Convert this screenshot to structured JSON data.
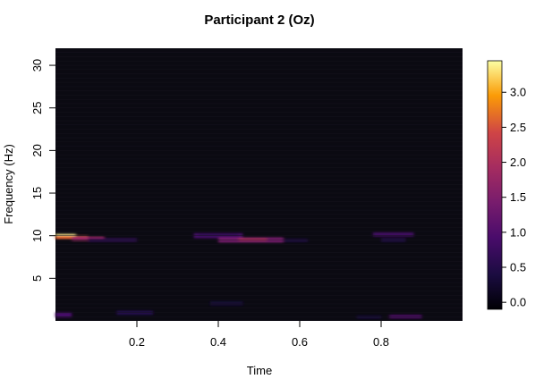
{
  "chart_data": {
    "type": "heatmap",
    "title": "Participant 2 (Oz)",
    "xlabel": "Time",
    "ylabel": "Frequency (Hz)",
    "xlim": [
      0,
      1.0
    ],
    "ylim": [
      0,
      32
    ],
    "x_ticks": [
      0.2,
      0.4,
      0.6,
      0.8
    ],
    "x_tick_labels": [
      "0.2",
      "0.4",
      "0.6",
      "0.8"
    ],
    "y_ticks": [
      5,
      10,
      15,
      20,
      25,
      30
    ],
    "y_tick_labels": [
      "5",
      "10",
      "15",
      "20",
      "25",
      "30"
    ],
    "colorbar": {
      "min": -0.1,
      "max": 3.45,
      "ticks": [
        0.0,
        0.5,
        1.0,
        1.5,
        2.0,
        2.5,
        3.0
      ],
      "tick_labels": [
        "0.0",
        "0.5",
        "1.0",
        "1.5",
        "2.0",
        "2.5",
        "3.0"
      ],
      "colormap": "inferno"
    },
    "background_color": "#0b0a12",
    "hotspots": [
      {
        "t": [
          0.0,
          0.05
        ],
        "f": [
          9.8,
          10.2
        ],
        "value": 3.4
      },
      {
        "t": [
          0.0,
          0.08
        ],
        "f": [
          9.6,
          10.0
        ],
        "value": 2.6
      },
      {
        "t": [
          0.04,
          0.12
        ],
        "f": [
          9.4,
          9.9
        ],
        "value": 1.8
      },
      {
        "t": [
          0.08,
          0.2
        ],
        "f": [
          9.3,
          9.7
        ],
        "value": 0.6
      },
      {
        "t": [
          0.0,
          0.04
        ],
        "f": [
          0.4,
          1.0
        ],
        "value": 0.9
      },
      {
        "t": [
          0.15,
          0.24
        ],
        "f": [
          0.7,
          1.2
        ],
        "value": 0.5
      },
      {
        "t": [
          0.34,
          0.46
        ],
        "f": [
          9.7,
          10.3
        ],
        "value": 0.9
      },
      {
        "t": [
          0.4,
          0.56
        ],
        "f": [
          9.2,
          9.8
        ],
        "value": 1.4
      },
      {
        "t": [
          0.45,
          0.52
        ],
        "f": [
          9.4,
          9.7
        ],
        "value": 2.0
      },
      {
        "t": [
          0.56,
          0.62
        ],
        "f": [
          9.3,
          9.6
        ],
        "value": 0.5
      },
      {
        "t": [
          0.35,
          0.45
        ],
        "f": [
          9.9,
          10.3
        ],
        "value": 0.7
      },
      {
        "t": [
          0.78,
          0.88
        ],
        "f": [
          9.9,
          10.4
        ],
        "value": 0.8
      },
      {
        "t": [
          0.8,
          0.86
        ],
        "f": [
          9.3,
          9.7
        ],
        "value": 0.5
      },
      {
        "t": [
          0.82,
          0.9
        ],
        "f": [
          0.3,
          0.7
        ],
        "value": 1.0
      },
      {
        "t": [
          0.74,
          0.8
        ],
        "f": [
          0.3,
          0.6
        ],
        "value": 0.4
      },
      {
        "t": [
          0.38,
          0.46
        ],
        "f": [
          1.8,
          2.3
        ],
        "value": 0.3
      }
    ]
  }
}
